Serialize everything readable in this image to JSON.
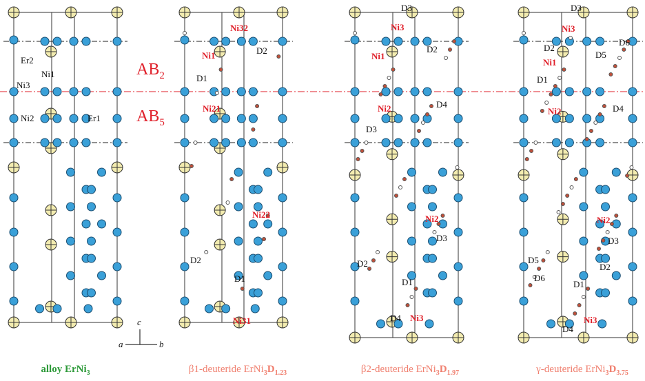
{
  "regions": {
    "upper": [
      "AB",
      "2"
    ],
    "lower": [
      "AB",
      "5"
    ]
  },
  "axes": {
    "a": "a",
    "b": "b",
    "c": "c"
  },
  "panels": [
    {
      "caption": [
        "alloy ErNi",
        "3"
      ],
      "labels": [
        "Er2",
        "Ni1",
        "Ni3",
        "Ni2",
        "Er1"
      ]
    },
    {
      "caption": [
        "β1-deuteride ErNi",
        "3",
        "D",
        "1.23"
      ],
      "labels": [
        "Ni32",
        "D2",
        "Ni1",
        "D1",
        "Ni21",
        "Ni22",
        "D2",
        "D1",
        "Ni31"
      ]
    },
    {
      "caption": [
        "β2-deuteride ErNi",
        "3",
        "D",
        "1.97"
      ],
      "labels": [
        "D3",
        "Ni3",
        "D2",
        "Ni1",
        "D4",
        "Ni2",
        "D3",
        "Ni2",
        "D3",
        "D2",
        "D1",
        "D4",
        "Ni3"
      ]
    },
    {
      "caption": [
        "γ-deuteride ErNi",
        "3",
        "D",
        "3.75"
      ],
      "labels": [
        "D3",
        "Ni3",
        "D2",
        "D6",
        "Ni1",
        "D5",
        "D1",
        "D4",
        "Ni2",
        "Ni2",
        "D3",
        "D5",
        "D6",
        "D2",
        "D1",
        "D4",
        "Ni3"
      ]
    }
  ]
}
